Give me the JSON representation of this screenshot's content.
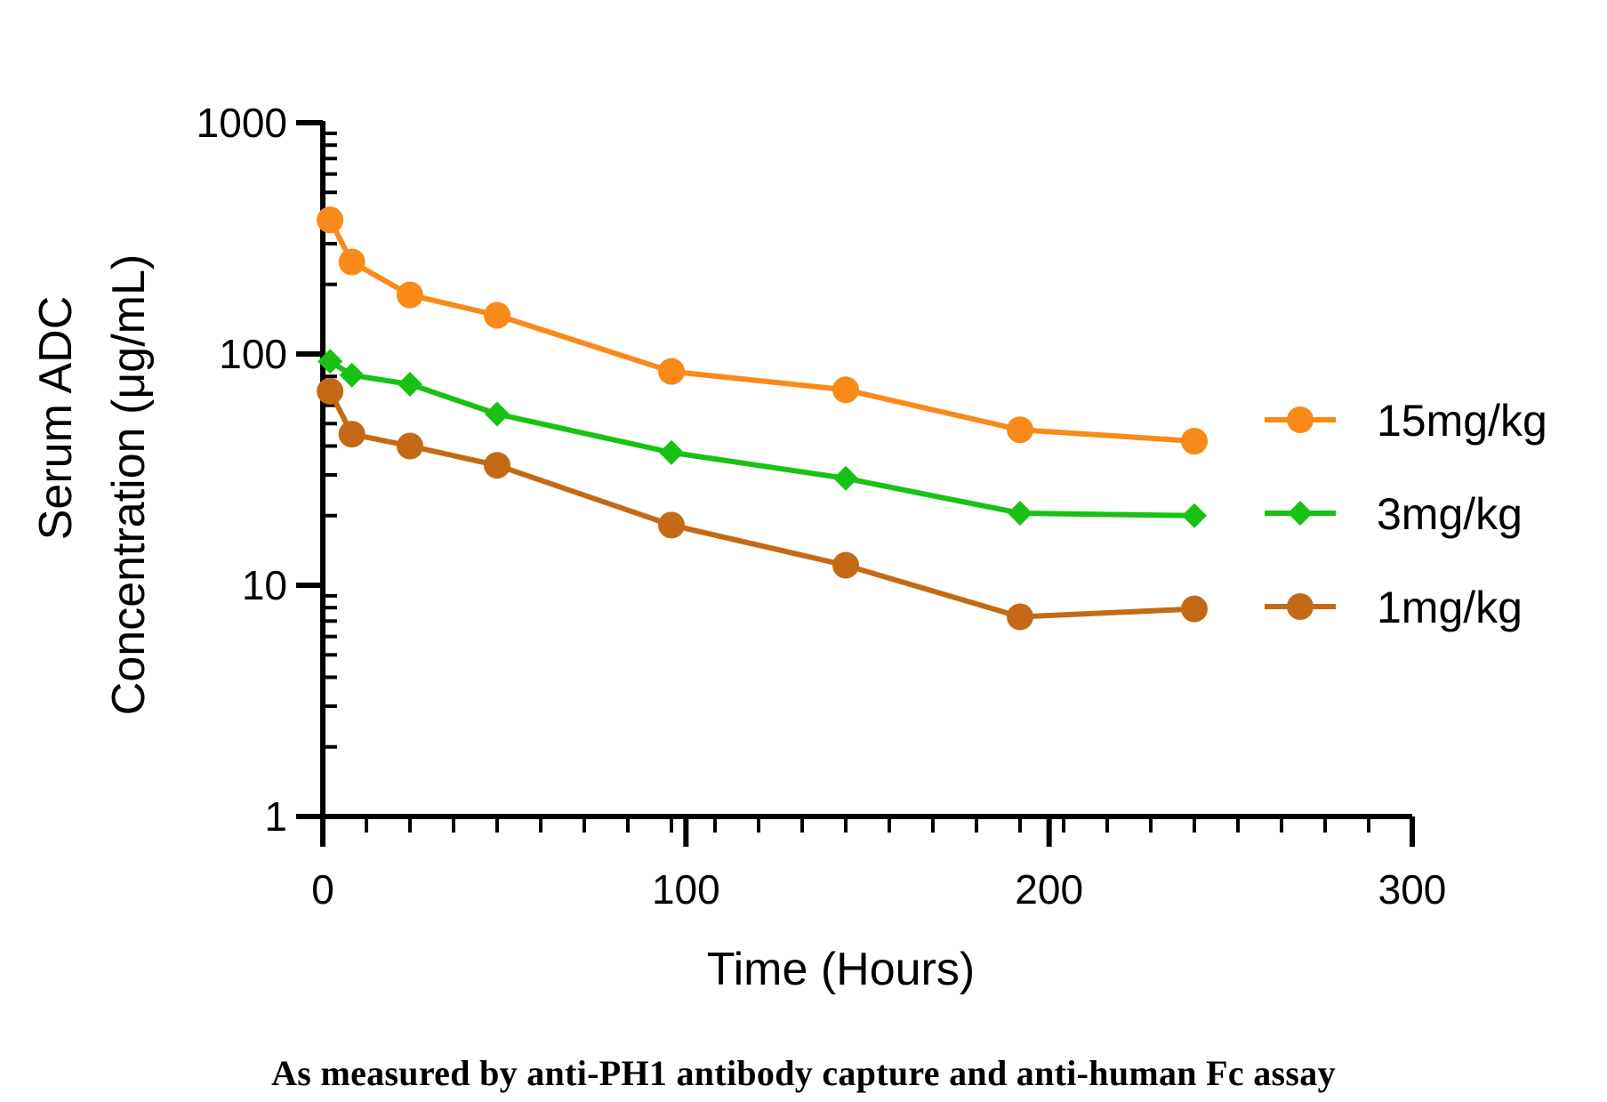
{
  "chart_data": {
    "type": "line",
    "title": "",
    "xlabel": "Time (Hours)",
    "ylabel": [
      "Serum ADC",
      "Concentration (μg/mL)"
    ],
    "xlim": [
      0,
      300
    ],
    "ylim": [
      1,
      1000
    ],
    "y_scale": "log",
    "x_ticks": [
      "0",
      "100",
      "200",
      "300"
    ],
    "y_ticks": [
      "1",
      "10",
      "100",
      "1000"
    ],
    "grid": false,
    "legend_position": "right",
    "x": [
      2,
      8,
      24,
      48,
      96,
      144,
      192,
      240
    ],
    "series": [
      {
        "name": "15mg/kg",
        "color": "#F98A1A",
        "marker": "circle",
        "values": [
          380,
          250,
          180,
          147,
          84,
          70,
          47,
          42
        ]
      },
      {
        "name": "3mg/kg",
        "color": "#18C214",
        "marker": "diamond",
        "values": [
          93,
          81,
          74,
          55,
          37.5,
          29,
          20.5,
          20
        ]
      },
      {
        "name": "1mg/kg",
        "color": "#C46A16",
        "marker": "circle",
        "values": [
          69,
          45,
          40,
          33,
          18.2,
          12.2,
          7.3,
          7.9
        ]
      }
    ]
  },
  "caption": "As measured by anti-PH1 antibody capture and anti-human Fc assay"
}
